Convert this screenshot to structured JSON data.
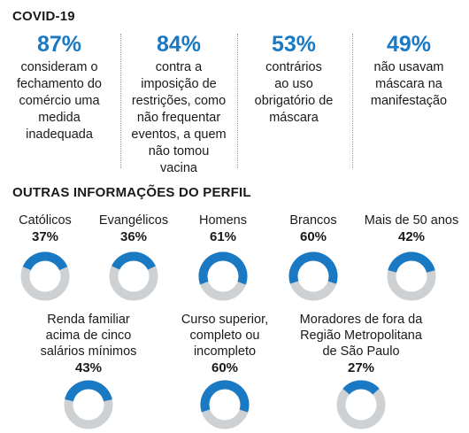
{
  "covid": {
    "title": "COVID-19",
    "stats": [
      {
        "pct": "87%",
        "lines": [
          "consideram o",
          "fechamento do",
          "comércio uma",
          "medida",
          "inadequada"
        ]
      },
      {
        "pct": "84%",
        "lines": [
          "contra a",
          "imposição de",
          "restrições, como",
          "não frequentar",
          "eventos, a quem",
          "não tomou",
          "vacina"
        ]
      },
      {
        "pct": "53%",
        "lines": [
          "contrários",
          "ao uso",
          "obrigatório de",
          "máscara"
        ]
      },
      {
        "pct": "49%",
        "lines": [
          "não usavam",
          "máscara na",
          "manifestação"
        ]
      }
    ]
  },
  "profile": {
    "title": "OUTRAS INFORMAÇÕES DO PERFIL"
  },
  "colors": {
    "accent": "#1979c3",
    "track": "#cdd1d4"
  },
  "chart_data": {
    "type": "pie",
    "title": "OUTRAS INFORMAÇÕES DO PERFIL",
    "categories": [
      "Católicos",
      "Evangélicos",
      "Homens",
      "Brancos",
      "Mais de 50 anos",
      "Renda familiar acima de cinco salários mínimos",
      "Curso superior, completo ou incompleto",
      "Moradores de fora da Região Metropolitana de São Paulo"
    ],
    "label_lines": [
      [
        "Católicos"
      ],
      [
        "Evangélicos"
      ],
      [
        "Homens"
      ],
      [
        "Brancos"
      ],
      [
        "Mais de 50 anos"
      ],
      [
        "Renda familiar",
        "acima de cinco",
        "salários mínimos"
      ],
      [
        "Curso superior,",
        "completo ou",
        "incompleto"
      ],
      [
        "Moradores de fora da",
        "Região Metropolitana",
        "de São Paulo"
      ]
    ],
    "values": [
      37,
      36,
      61,
      60,
      42,
      43,
      60,
      27
    ],
    "value_labels": [
      "37%",
      "36%",
      "61%",
      "60%",
      "42%",
      "43%",
      "60%",
      "27%"
    ]
  }
}
